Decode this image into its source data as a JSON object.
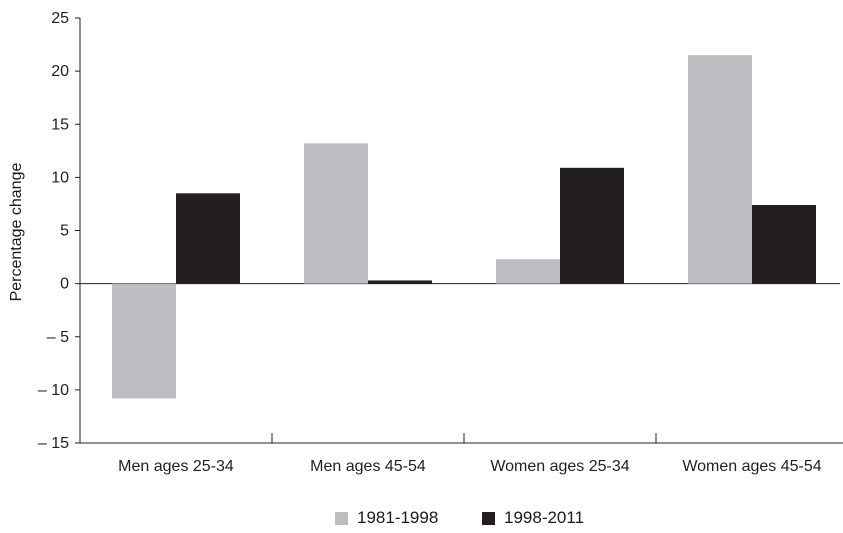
{
  "chart_data": {
    "type": "bar",
    "title": "",
    "xlabel": "",
    "ylabel": "Percentage change",
    "ylim": [
      -15,
      25
    ],
    "yticks": [
      25,
      20,
      15,
      10,
      5,
      0,
      -5,
      -10,
      -15
    ],
    "ytick_labels": [
      "25",
      "20",
      "15",
      "10",
      "5",
      "0",
      "– 5",
      "– 10",
      "– 15"
    ],
    "categories": [
      "Men ages 25-34",
      "Men ages 45-54",
      "Women ages 25-34",
      "Women ages 45-54"
    ],
    "series": [
      {
        "name": "1981-1998",
        "values": [
          -10.8,
          13.2,
          2.3,
          21.5
        ],
        "color": "#bcbdc0"
      },
      {
        "name": "1998-2011",
        "values": [
          8.5,
          0.3,
          10.9,
          7.4
        ],
        "color": "#231f20"
      }
    ],
    "grid": false,
    "legend_position": "bottom"
  }
}
